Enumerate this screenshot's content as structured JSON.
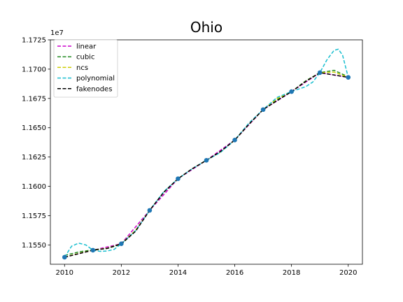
{
  "chart_data": {
    "type": "line",
    "title": "Ohio",
    "xlabel": "",
    "ylabel": "",
    "y_offset_label": "1e7",
    "xlim": [
      2009.5,
      2020.5
    ],
    "ylim": [
      1.15335,
      1.1725
    ],
    "x_ticks": [
      2010,
      2012,
      2014,
      2016,
      2018,
      2020
    ],
    "x_tick_labels": [
      "2010",
      "2012",
      "2014",
      "2016",
      "2018",
      "2020"
    ],
    "y_ticks": [
      1.155,
      1.1575,
      1.16,
      1.1625,
      1.165,
      1.1675,
      1.17,
      1.1725
    ],
    "y_tick_labels": [
      "1.1550",
      "1.1575",
      "1.1600",
      "1.1625",
      "1.1650",
      "1.1675",
      "1.1700",
      "1.1725"
    ],
    "grid": false,
    "legend_position": "top-left",
    "observed": {
      "x": [
        2010,
        2011,
        2012,
        2013,
        2014,
        2015,
        2016,
        2017,
        2018,
        2019,
        2020
      ],
      "y": [
        1.15395,
        1.15455,
        1.1551,
        1.15795,
        1.16065,
        1.16222,
        1.16395,
        1.16655,
        1.16808,
        1.1697,
        1.1693
      ],
      "color": "#1f77b4"
    },
    "series": [
      {
        "name": "linear",
        "color": "#cc00cc",
        "x": [
          2010,
          2011,
          2012,
          2013,
          2014,
          2015,
          2016,
          2017,
          2018,
          2019,
          2020
        ],
        "y": [
          1.15395,
          1.15455,
          1.1551,
          1.15795,
          1.16065,
          1.16222,
          1.16395,
          1.16655,
          1.16808,
          1.1697,
          1.1693
        ]
      },
      {
        "name": "cubic",
        "color": "#228b22",
        "x": [
          2010,
          2010.5,
          2011,
          2011.5,
          2012,
          2012.5,
          2013,
          2013.5,
          2014,
          2014.5,
          2015,
          2015.5,
          2016,
          2016.5,
          2017,
          2017.5,
          2018,
          2018.5,
          2019,
          2019.5,
          2020
        ],
        "y": [
          1.1541,
          1.1544,
          1.15458,
          1.1547,
          1.15505,
          1.1562,
          1.15795,
          1.1595,
          1.16065,
          1.1615,
          1.16222,
          1.16295,
          1.16395,
          1.1653,
          1.16655,
          1.1674,
          1.16808,
          1.169,
          1.1697,
          1.1699,
          1.16935
        ]
      },
      {
        "name": "ncs",
        "color": "#cccc00",
        "x": [
          2010,
          2010.5,
          2011,
          2011.5,
          2012,
          2012.5,
          2013,
          2013.5,
          2014,
          2014.5,
          2015,
          2015.5,
          2016,
          2016.5,
          2017,
          2017.5,
          2018,
          2018.5,
          2019,
          2019.5,
          2020
        ],
        "y": [
          1.15395,
          1.15428,
          1.15455,
          1.15472,
          1.1551,
          1.15625,
          1.15795,
          1.1595,
          1.16065,
          1.1615,
          1.16222,
          1.16295,
          1.16395,
          1.1653,
          1.16655,
          1.1675,
          1.16808,
          1.16895,
          1.1697,
          1.16975,
          1.1693
        ]
      },
      {
        "name": "polynomial",
        "color": "#17becf",
        "x": [
          2010,
          2010.25,
          2010.5,
          2010.75,
          2011,
          2011.25,
          2011.5,
          2011.75,
          2012,
          2012.5,
          2013,
          2013.5,
          2014,
          2014.5,
          2015,
          2015.5,
          2016,
          2016.5,
          2017,
          2017.5,
          2018,
          2018.25,
          2018.5,
          2018.75,
          2019,
          2019.25,
          2019.5,
          2019.65,
          2019.8,
          2020
        ],
        "y": [
          1.15395,
          1.1549,
          1.15515,
          1.155,
          1.15455,
          1.15445,
          1.15448,
          1.15462,
          1.1551,
          1.1562,
          1.15795,
          1.15955,
          1.16065,
          1.1615,
          1.16222,
          1.1629,
          1.16395,
          1.1654,
          1.16655,
          1.1676,
          1.16808,
          1.1683,
          1.1685,
          1.1689,
          1.1697,
          1.1708,
          1.1716,
          1.1717,
          1.1712,
          1.1693
        ]
      },
      {
        "name": "fakenodes",
        "color": "#000000",
        "x": [
          2010,
          2010.5,
          2011,
          2011.5,
          2012,
          2012.5,
          2013,
          2013.5,
          2014,
          2014.5,
          2015,
          2015.5,
          2016,
          2016.5,
          2017,
          2017.5,
          2018,
          2018.5,
          2019,
          2019.5,
          2020
        ],
        "y": [
          1.15395,
          1.15425,
          1.15455,
          1.1547,
          1.1551,
          1.15615,
          1.15795,
          1.1595,
          1.16065,
          1.1615,
          1.16222,
          1.16298,
          1.16395,
          1.1653,
          1.16655,
          1.16732,
          1.16808,
          1.16895,
          1.1697,
          1.1695,
          1.1693
        ]
      }
    ]
  }
}
